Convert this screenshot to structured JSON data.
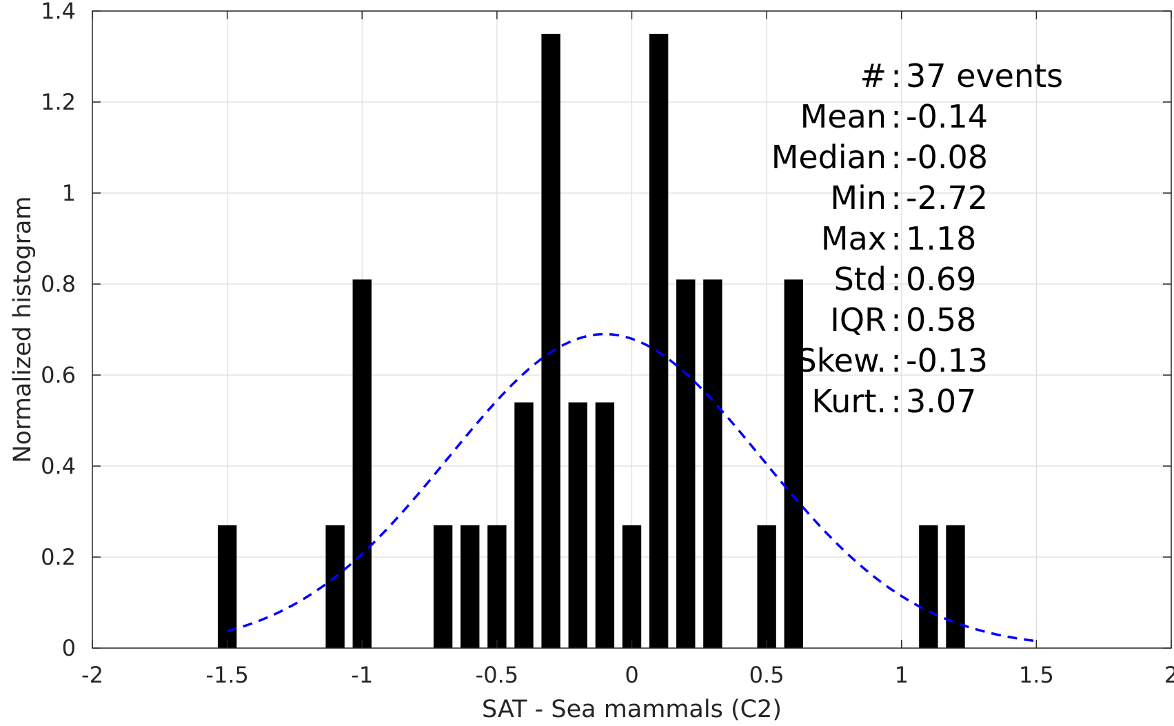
{
  "chart_data": {
    "type": "bar",
    "title": "",
    "xlabel": "SAT - Sea mammals (C2)",
    "ylabel": "Normalized histogram",
    "xlim": [
      -2,
      2
    ],
    "ylim": [
      0,
      1.4
    ],
    "grid": true,
    "x_ticks": [
      "-2",
      "-1.5",
      "-1",
      "-0.5",
      "0",
      "0.5",
      "1",
      "1.5",
      "2"
    ],
    "y_ticks": [
      "0",
      "0.2",
      "0.4",
      "0.6",
      "0.8",
      "1",
      "1.2",
      "1.4"
    ],
    "bar_color": "#000000",
    "bar_width": 0.07,
    "bars": [
      {
        "x": -1.5,
        "y": 0.27
      },
      {
        "x": -1.1,
        "y": 0.27
      },
      {
        "x": -1.0,
        "y": 0.81
      },
      {
        "x": -0.7,
        "y": 0.27
      },
      {
        "x": -0.6,
        "y": 0.27
      },
      {
        "x": -0.5,
        "y": 0.27
      },
      {
        "x": -0.4,
        "y": 0.54
      },
      {
        "x": -0.3,
        "y": 1.35
      },
      {
        "x": -0.2,
        "y": 0.54
      },
      {
        "x": -0.1,
        "y": 0.54
      },
      {
        "x": 0.0,
        "y": 0.27
      },
      {
        "x": 0.1,
        "y": 1.35
      },
      {
        "x": 0.2,
        "y": 0.81
      },
      {
        "x": 0.3,
        "y": 0.81
      },
      {
        "x": 0.5,
        "y": 0.27
      },
      {
        "x": 0.6,
        "y": 0.81
      },
      {
        "x": 1.1,
        "y": 0.27
      },
      {
        "x": 1.2,
        "y": 0.27
      }
    ],
    "fit_curve": {
      "type": "normal",
      "style": "dashed",
      "color": "#0000ff",
      "mean": -0.1,
      "std": 0.58,
      "peak": 0.69,
      "x_range": [
        -1.5,
        1.5
      ]
    },
    "stats_box": {
      "placement": "top-right",
      "lines": [
        "#  : 37 events",
        "Mean : -0.14",
        "Median : -0.08",
        "Min : -2.72",
        "Max : 1.18",
        "Std : 0.69",
        "IQR : 0.58",
        "Skew. : -0.13",
        "Kurt. : 3.07"
      ]
    }
  }
}
